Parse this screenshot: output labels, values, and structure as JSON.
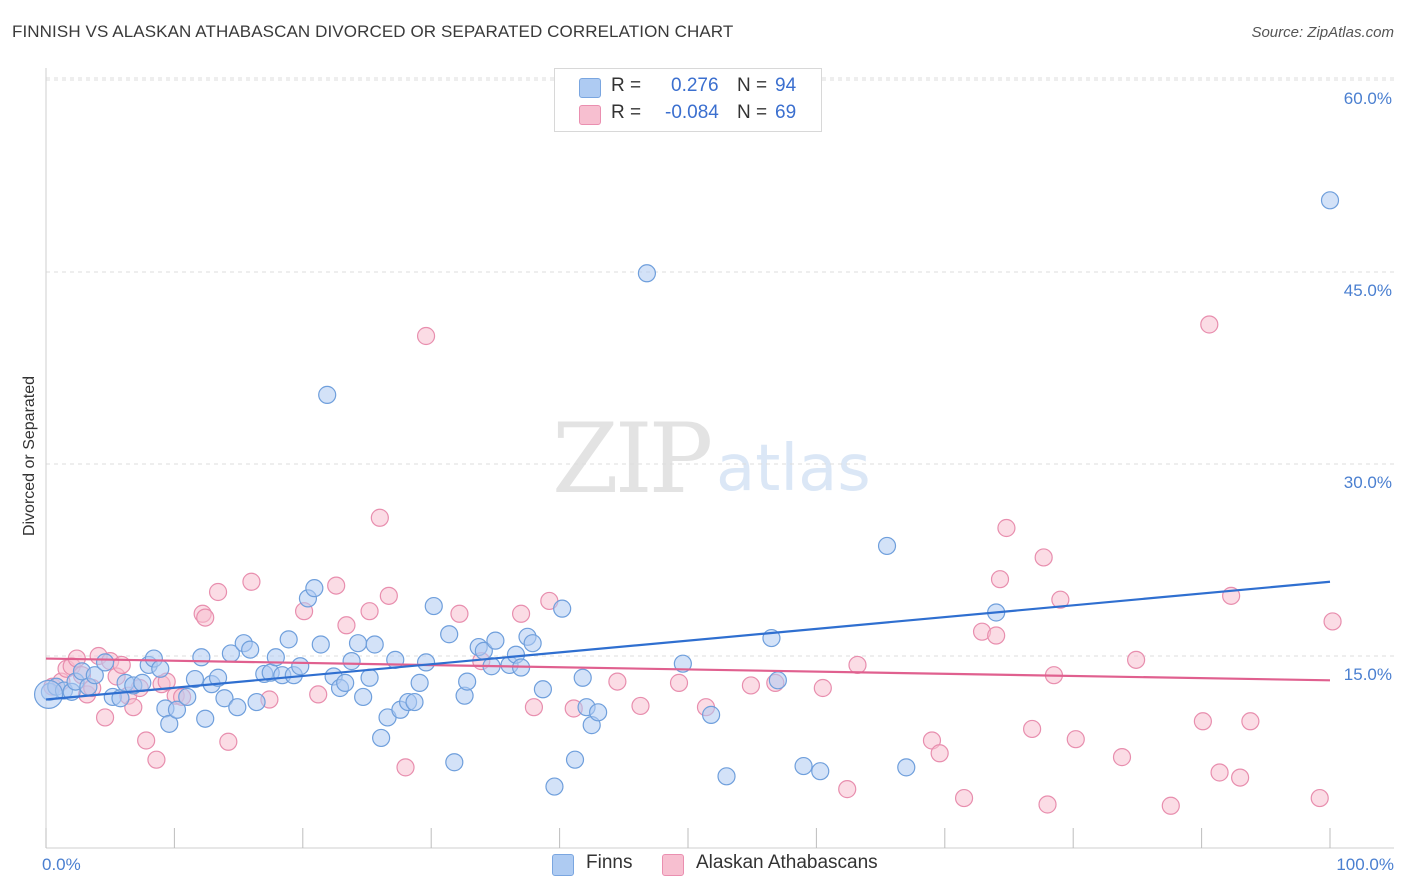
{
  "header": {
    "title": "FINNISH VS ALASKAN ATHABASCAN DIVORCED OR SEPARATED CORRELATION CHART",
    "source": "Source: ZipAtlas.com"
  },
  "watermark": {
    "zip": "ZIP",
    "atlas": "atlas"
  },
  "legend": {
    "r_label": "R =",
    "n_label": "N =",
    "rows": [
      {
        "r": "0.276",
        "n": "94",
        "color": "#aecbf2",
        "border": "#7aa6e0"
      },
      {
        "r": "-0.084",
        "n": "69",
        "color": "#f7bfd0",
        "border": "#ea8fb0"
      }
    ]
  },
  "bottom_legend": {
    "finns": "Finns",
    "athabascans": "Alaskan Athabascans"
  },
  "colors": {
    "finns_fill": "#aecbf2",
    "finns_stroke": "#6f9fdc",
    "finns_line": "#2f6fd0",
    "ath_fill": "#f7bfd0",
    "ath_stroke": "#e88eae",
    "ath_line": "#e0608f",
    "grid": "#dedede",
    "tick_label": "#4a7fd0"
  },
  "chart_data": {
    "type": "scatter",
    "title": "FINNISH VS ALASKAN ATHABASCAN DIVORCED OR SEPARATED CORRELATION CHART",
    "xlabel": "",
    "ylabel": "Divorced or Separated",
    "xlim": [
      0,
      100
    ],
    "ylim": [
      0,
      60
    ],
    "y_ticks": [
      15,
      30,
      45,
      60
    ],
    "y_tick_labels": [
      "15.0%",
      "30.0%",
      "45.0%",
      "60.0%"
    ],
    "x_tick_labels": [
      "0.0%",
      "100.0%"
    ],
    "grid": "horizontal dashed",
    "legend_position": "top-center",
    "series": [
      {
        "name": "Finns",
        "r": 0.276,
        "n": 94,
        "trend": {
          "x": [
            0,
            100
          ],
          "y": [
            11.6,
            20.8
          ]
        },
        "points": [
          [
            0.3,
            12.2
          ],
          [
            0.8,
            12.6
          ],
          [
            1.4,
            12.3
          ],
          [
            2.0,
            12.2
          ],
          [
            2.3,
            13.0
          ],
          [
            2.8,
            13.8
          ],
          [
            3.3,
            12.6
          ],
          [
            3.8,
            13.5
          ],
          [
            4.6,
            14.5
          ],
          [
            5.2,
            11.8
          ],
          [
            5.8,
            11.7
          ],
          [
            6.2,
            12.9
          ],
          [
            6.8,
            12.7
          ],
          [
            7.5,
            12.9
          ],
          [
            8.0,
            14.3
          ],
          [
            8.4,
            14.8
          ],
          [
            8.9,
            14.0
          ],
          [
            9.3,
            10.9
          ],
          [
            9.6,
            9.7
          ],
          [
            10.2,
            10.8
          ],
          [
            11.0,
            11.8
          ],
          [
            11.6,
            13.2
          ],
          [
            12.1,
            14.9
          ],
          [
            12.4,
            10.1
          ],
          [
            12.9,
            12.8
          ],
          [
            13.4,
            13.3
          ],
          [
            13.9,
            11.7
          ],
          [
            14.4,
            15.2
          ],
          [
            14.9,
            11.0
          ],
          [
            15.4,
            16.0
          ],
          [
            15.9,
            15.5
          ],
          [
            16.4,
            11.4
          ],
          [
            17.0,
            13.6
          ],
          [
            17.5,
            13.7
          ],
          [
            17.9,
            14.9
          ],
          [
            18.4,
            13.5
          ],
          [
            18.9,
            16.3
          ],
          [
            19.3,
            13.5
          ],
          [
            19.8,
            14.2
          ],
          [
            20.4,
            19.5
          ],
          [
            20.9,
            20.3
          ],
          [
            21.4,
            15.9
          ],
          [
            21.9,
            35.4
          ],
          [
            22.4,
            13.4
          ],
          [
            22.9,
            12.5
          ],
          [
            23.3,
            12.9
          ],
          [
            23.8,
            14.6
          ],
          [
            24.3,
            16.0
          ],
          [
            24.7,
            11.8
          ],
          [
            25.2,
            13.3
          ],
          [
            25.6,
            15.9
          ],
          [
            26.1,
            8.6
          ],
          [
            26.6,
            10.2
          ],
          [
            27.2,
            14.7
          ],
          [
            27.6,
            10.8
          ],
          [
            28.2,
            11.4
          ],
          [
            28.7,
            11.4
          ],
          [
            29.1,
            12.9
          ],
          [
            29.6,
            14.5
          ],
          [
            30.2,
            18.9
          ],
          [
            31.4,
            16.7
          ],
          [
            31.8,
            6.7
          ],
          [
            32.6,
            11.9
          ],
          [
            32.8,
            13.0
          ],
          [
            33.7,
            15.7
          ],
          [
            34.1,
            15.4
          ],
          [
            34.7,
            14.2
          ],
          [
            35.0,
            16.2
          ],
          [
            36.1,
            14.3
          ],
          [
            36.6,
            15.1
          ],
          [
            37.0,
            14.1
          ],
          [
            37.5,
            16.5
          ],
          [
            37.9,
            16.0
          ],
          [
            38.7,
            12.4
          ],
          [
            39.6,
            4.8
          ],
          [
            40.2,
            18.7
          ],
          [
            41.2,
            6.9
          ],
          [
            41.8,
            13.3
          ],
          [
            42.1,
            11.0
          ],
          [
            42.5,
            9.6
          ],
          [
            43.0,
            10.6
          ],
          [
            46.8,
            44.9
          ],
          [
            49.6,
            14.4
          ],
          [
            51.8,
            10.4
          ],
          [
            53.0,
            5.6
          ],
          [
            56.5,
            16.4
          ],
          [
            57.0,
            13.1
          ],
          [
            59.0,
            6.4
          ],
          [
            60.3,
            6.0
          ],
          [
            65.5,
            23.6
          ],
          [
            67.0,
            6.3
          ],
          [
            74.0,
            18.4
          ],
          [
            100.0,
            50.6
          ],
          [
            0.2,
            12.0
          ]
        ]
      },
      {
        "name": "Alaskan Athabascans",
        "r": -0.084,
        "n": 69,
        "trend": {
          "x": [
            0,
            100
          ],
          "y": [
            14.8,
            13.1
          ]
        },
        "points": [
          [
            0.5,
            12.6
          ],
          [
            1.2,
            13.0
          ],
          [
            1.6,
            14.0
          ],
          [
            2.0,
            14.2
          ],
          [
            2.4,
            14.8
          ],
          [
            2.8,
            13.5
          ],
          [
            3.2,
            12.0
          ],
          [
            3.6,
            12.5
          ],
          [
            4.1,
            15.0
          ],
          [
            4.6,
            10.2
          ],
          [
            5.0,
            14.6
          ],
          [
            5.5,
            13.4
          ],
          [
            5.9,
            14.3
          ],
          [
            6.4,
            11.9
          ],
          [
            6.8,
            11.0
          ],
          [
            7.3,
            12.5
          ],
          [
            7.8,
            8.4
          ],
          [
            8.6,
            6.9
          ],
          [
            9.0,
            12.8
          ],
          [
            9.4,
            13.0
          ],
          [
            10.1,
            11.9
          ],
          [
            10.6,
            11.8
          ],
          [
            12.2,
            18.3
          ],
          [
            12.4,
            18.0
          ],
          [
            13.4,
            20.0
          ],
          [
            14.2,
            8.3
          ],
          [
            16.0,
            20.8
          ],
          [
            17.4,
            11.6
          ],
          [
            20.1,
            18.5
          ],
          [
            21.2,
            12.0
          ],
          [
            22.6,
            20.5
          ],
          [
            23.4,
            17.4
          ],
          [
            25.2,
            18.5
          ],
          [
            26.0,
            25.8
          ],
          [
            26.7,
            19.7
          ],
          [
            28.0,
            6.3
          ],
          [
            29.6,
            40.0
          ],
          [
            32.2,
            18.3
          ],
          [
            33.9,
            14.6
          ],
          [
            37.0,
            18.3
          ],
          [
            38.0,
            11.0
          ],
          [
            39.2,
            19.3
          ],
          [
            41.1,
            10.9
          ],
          [
            44.5,
            13.0
          ],
          [
            46.3,
            11.1
          ],
          [
            49.3,
            12.9
          ],
          [
            51.4,
            11.0
          ],
          [
            54.9,
            12.7
          ],
          [
            56.8,
            12.9
          ],
          [
            60.5,
            12.5
          ],
          [
            62.4,
            4.6
          ],
          [
            63.2,
            14.3
          ],
          [
            69.0,
            8.4
          ],
          [
            69.6,
            7.4
          ],
          [
            71.5,
            3.9
          ],
          [
            72.9,
            16.9
          ],
          [
            74.0,
            16.6
          ],
          [
            74.3,
            21.0
          ],
          [
            74.8,
            25.0
          ],
          [
            76.8,
            9.3
          ],
          [
            77.7,
            22.7
          ],
          [
            78.0,
            3.4
          ],
          [
            78.5,
            13.5
          ],
          [
            79.0,
            19.4
          ],
          [
            80.2,
            8.5
          ],
          [
            83.8,
            7.1
          ],
          [
            84.9,
            14.7
          ],
          [
            87.6,
            3.3
          ],
          [
            90.1,
            9.9
          ]
        ],
        "points_extra": [
          [
            90.6,
            40.9
          ],
          [
            91.4,
            5.9
          ],
          [
            92.3,
            19.7
          ],
          [
            93.0,
            5.5
          ],
          [
            93.8,
            9.9
          ],
          [
            99.2,
            3.9
          ],
          [
            100.2,
            17.7
          ]
        ]
      }
    ]
  }
}
